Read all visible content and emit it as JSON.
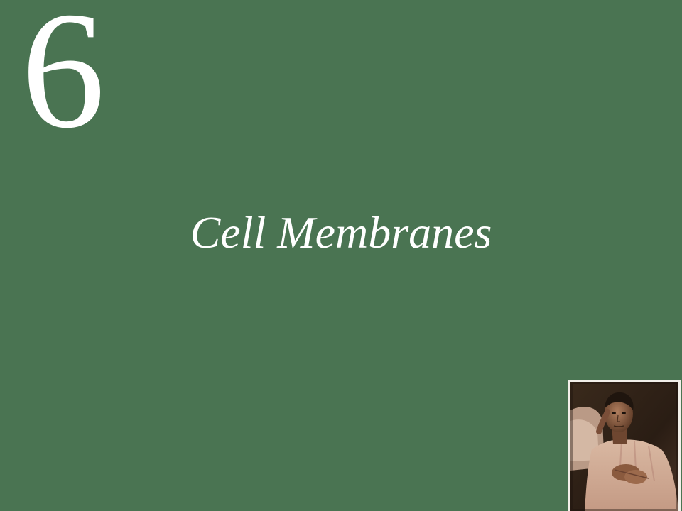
{
  "slide": {
    "chapter_number": "6",
    "title": "Cell Membranes"
  },
  "colors": {
    "background": "#4a7452",
    "text": "#ffffff"
  },
  "photo": {
    "subject": "portrait-photo"
  }
}
